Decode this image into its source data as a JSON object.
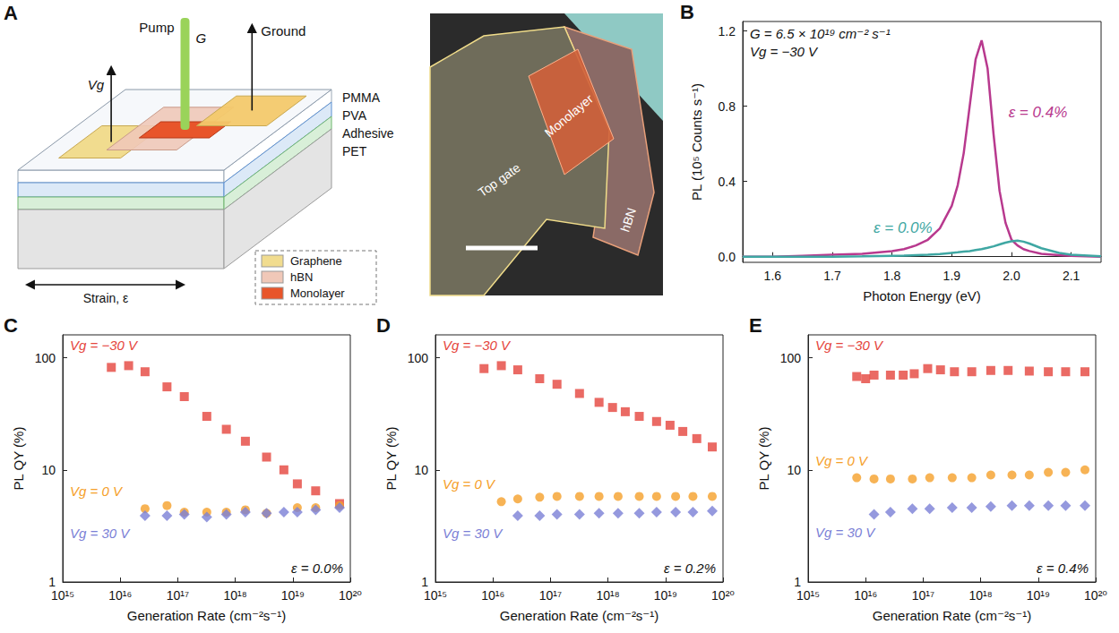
{
  "panel_a": {
    "panel": "A",
    "schematic": {
      "pump": "Pump",
      "rate": "G",
      "gate": "Vg",
      "ground": "Ground",
      "layers": [
        "PMMA",
        "PVA",
        "Adhesive",
        "PET"
      ],
      "materials": [
        "Graphene",
        "hBN",
        "Monolayer"
      ],
      "strain": "Strain, ε"
    },
    "micrograph": {
      "monolayer": "Monolayer",
      "top_gate": "Top gate",
      "hbn": "hBN"
    }
  },
  "chart_data": [
    {
      "panel": "B",
      "type": "line",
      "grid": false,
      "annotations": [
        "G = 6.5 × 10¹⁹ cm⁻² s⁻¹",
        "Vg = −30 V"
      ],
      "x_label": "Photon Energy (eV)",
      "y_label": "PL (10⁵ Counts s⁻¹)",
      "x": [
        1.55,
        1.6,
        1.65,
        1.7,
        1.75,
        1.8,
        1.82,
        1.84,
        1.86,
        1.88,
        1.9,
        1.91,
        1.92,
        1.93,
        1.94,
        1.95,
        1.96,
        1.97,
        1.98,
        1.99,
        2.0,
        2.01,
        2.02,
        2.03,
        2.05,
        2.08,
        2.1,
        2.15
      ],
      "series": [
        {
          "name": "ε = 0.4%",
          "color": "#b8398e",
          "values": [
            0,
            0,
            0.005,
            0.01,
            0.015,
            0.03,
            0.04,
            0.06,
            0.09,
            0.15,
            0.27,
            0.38,
            0.55,
            0.8,
            1.05,
            1.15,
            1.0,
            0.65,
            0.35,
            0.18,
            0.09,
            0.06,
            0.04,
            0.03,
            0.015,
            0.008,
            0.005,
            0
          ]
        },
        {
          "name": "ε = 0.0%",
          "color": "#3fa7a3",
          "values": [
            0,
            0,
            0,
            0,
            0.002,
            0.005,
            0.006,
            0.008,
            0.01,
            0.014,
            0.02,
            0.023,
            0.027,
            0.03,
            0.035,
            0.04,
            0.047,
            0.055,
            0.065,
            0.075,
            0.082,
            0.085,
            0.08,
            0.07,
            0.045,
            0.02,
            0.01,
            0.002
          ]
        }
      ],
      "xlim": [
        1.55,
        2.15
      ],
      "xticks": [
        1.6,
        1.7,
        1.8,
        1.9,
        {
          "value": 2,
          "label": "2.0"
        },
        2.1
      ],
      "ylim": [
        -0.03,
        1.25
      ],
      "yticks": [
        {
          "value": 0,
          "label": "0.0"
        },
        0.4,
        0.8,
        1.2
      ]
    },
    {
      "panel": "C",
      "type": "scatter",
      "log": true,
      "grid": false,
      "annotations": [
        "ε = 0.0%"
      ],
      "x_label": "Generation Rate (cm⁻²s⁻¹)",
      "y_label": "PL QY (%)",
      "series": [
        {
          "name": "Vg = −30 V",
          "color": "#e5453d",
          "marker": "square",
          "x": [
            7000000000000000.0,
            1.4e+16,
            2.7e+16,
            6.5e+16,
            1.3e+17,
            3.2e+17,
            7e+17,
            1.5e+18,
            3.5e+18,
            7e+18,
            1.2e+19,
            2.5e+19,
            6.5e+19
          ],
          "values": [
            82,
            85,
            75,
            55,
            45,
            30,
            23,
            18,
            13,
            10,
            7.5,
            6.5,
            5
          ]
        },
        {
          "name": "Vg = 0 V",
          "color": "#f5a02a",
          "marker": "circle",
          "x": [
            2.7e+16,
            6.5e+16,
            1.3e+17,
            3.2e+17,
            7e+17,
            1.5e+18,
            3.5e+18,
            1.2e+19,
            2.5e+19,
            6.5e+19
          ],
          "values": [
            4.5,
            4.8,
            4.2,
            4.2,
            4.2,
            4.4,
            4.1,
            4.6,
            4.6,
            4.8
          ]
        },
        {
          "name": "Vg = 30 V",
          "color": "#7b7fd6",
          "marker": "diamond",
          "x": [
            2.7e+16,
            6.5e+16,
            1.3e+17,
            3.2e+17,
            7e+17,
            1.5e+18,
            3.5e+18,
            7e+18,
            1.2e+19,
            2.5e+19,
            6.5e+19
          ],
          "values": [
            3.9,
            3.9,
            4.0,
            3.8,
            4.0,
            4.2,
            4.1,
            4.2,
            4.2,
            4.4,
            4.6
          ]
        }
      ],
      "xlim": [
        1000000000000000.0,
        1e+20
      ],
      "xticks": [
        {
          "value": 1000000000000000.0,
          "label": "10¹⁵"
        },
        {
          "value": 1e+16,
          "label": "10¹⁶"
        },
        {
          "value": 1e+17,
          "label": "10¹⁷"
        },
        {
          "value": 1e+18,
          "label": "10¹⁸"
        },
        {
          "value": 1e+19,
          "label": "10¹⁹"
        },
        {
          "value": 1e+20,
          "label": "10²⁰"
        }
      ],
      "ylim": [
        1,
        160
      ],
      "yticks": [
        1,
        10,
        100
      ]
    },
    {
      "panel": "D",
      "type": "scatter",
      "log": true,
      "grid": false,
      "annotations": [
        "ε = 0.2%"
      ],
      "x_label": "Generation Rate (cm⁻²s⁻¹)",
      "y_label": "PL QY (%)",
      "series": [
        {
          "name": "Vg = −30 V",
          "color": "#e5453d",
          "marker": "square",
          "x": [
            7000000000000000.0,
            1.4e+16,
            2.7e+16,
            6.5e+16,
            1.3e+17,
            3.2e+17,
            7e+17,
            1.2e+18,
            2e+18,
            3.5e+18,
            7e+18,
            1.2e+19,
            2e+19,
            3.5e+19,
            6.5e+19
          ],
          "values": [
            80,
            85,
            78,
            65,
            58,
            48,
            40,
            36,
            33,
            30,
            27,
            25,
            22,
            19,
            16
          ]
        },
        {
          "name": "Vg = 0 V",
          "color": "#f5a02a",
          "marker": "circle",
          "x": [
            1.4e+16,
            2.7e+16,
            6.5e+16,
            1.3e+17,
            3.2e+17,
            7e+17,
            1.5e+18,
            3.5e+18,
            7e+18,
            1.5e+19,
            3e+19,
            6.5e+19
          ],
          "values": [
            5.2,
            5.5,
            5.7,
            5.8,
            5.8,
            5.8,
            5.8,
            5.8,
            5.8,
            5.8,
            5.8,
            5.8
          ]
        },
        {
          "name": "Vg = 30 V",
          "color": "#7b7fd6",
          "marker": "diamond",
          "x": [
            2.7e+16,
            6.5e+16,
            1.3e+17,
            3.2e+17,
            7e+17,
            1.5e+18,
            3.5e+18,
            7e+18,
            1.5e+19,
            3e+19,
            6.5e+19
          ],
          "values": [
            3.9,
            3.9,
            4.0,
            4.0,
            4.1,
            4.1,
            4.1,
            4.2,
            4.2,
            4.2,
            4.3
          ]
        }
      ],
      "xlim": [
        1000000000000000.0,
        1e+20
      ],
      "xticks": [
        {
          "value": 1000000000000000.0,
          "label": "10¹⁵"
        },
        {
          "value": 1e+16,
          "label": "10¹⁶"
        },
        {
          "value": 1e+17,
          "label": "10¹⁷"
        },
        {
          "value": 1e+18,
          "label": "10¹⁸"
        },
        {
          "value": 1e+19,
          "label": "10¹⁹"
        },
        {
          "value": 1e+20,
          "label": "10²⁰"
        }
      ],
      "ylim": [
        1,
        160
      ],
      "yticks": [
        1,
        10,
        100
      ]
    },
    {
      "panel": "E",
      "type": "scatter",
      "log": true,
      "grid": false,
      "annotations": [
        "ε = 0.4%"
      ],
      "x_label": "Generation Rate (cm⁻²s⁻¹)",
      "y_label": "PL QY (%)",
      "series": [
        {
          "name": "Vg = −30 V",
          "color": "#e5453d",
          "marker": "square",
          "x": [
            7000000000000000.0,
            1e+16,
            1.4e+16,
            2.7e+16,
            4.5e+16,
            7e+16,
            1.2e+17,
            2e+17,
            3.5e+17,
            7e+17,
            1.5e+18,
            3e+18,
            7e+18,
            1.5e+19,
            3e+19,
            6.5e+19
          ],
          "values": [
            68,
            65,
            70,
            70,
            70,
            72,
            80,
            78,
            75,
            75,
            77,
            77,
            76,
            75,
            75,
            75
          ]
        },
        {
          "name": "Vg = 0 V",
          "color": "#f5a02a",
          "marker": "circle",
          "x": [
            7000000000000000.0,
            1.4e+16,
            2.7e+16,
            6.5e+16,
            1.3e+17,
            3.2e+17,
            7e+17,
            1.5e+18,
            3.5e+18,
            7e+18,
            1.5e+19,
            3e+19,
            6.5e+19
          ],
          "values": [
            8.5,
            8.3,
            8.3,
            8.3,
            8.5,
            8.5,
            8.5,
            9,
            9,
            9,
            9.5,
            9.5,
            10
          ]
        },
        {
          "name": "Vg = 30 V",
          "color": "#7b7fd6",
          "marker": "diamond",
          "x": [
            1.4e+16,
            2.7e+16,
            6.5e+16,
            1.3e+17,
            3.2e+17,
            7e+17,
            1.5e+18,
            3.5e+18,
            7e+18,
            1.5e+19,
            3e+19,
            6.5e+19
          ],
          "values": [
            4.0,
            4.2,
            4.5,
            4.5,
            4.6,
            4.6,
            4.7,
            4.8,
            4.8,
            4.8,
            4.8,
            4.8
          ]
        }
      ],
      "xlim": [
        1000000000000000.0,
        1e+20
      ],
      "xticks": [
        {
          "value": 1000000000000000.0,
          "label": "10¹⁵"
        },
        {
          "value": 1e+16,
          "label": "10¹⁶"
        },
        {
          "value": 1e+17,
          "label": "10¹⁷"
        },
        {
          "value": 1e+18,
          "label": "10¹⁸"
        },
        {
          "value": 1e+19,
          "label": "10¹⁹"
        },
        {
          "value": 1e+20,
          "label": "10²⁰"
        }
      ],
      "ylim": [
        1,
        160
      ],
      "yticks": [
        1,
        10,
        100
      ]
    }
  ]
}
